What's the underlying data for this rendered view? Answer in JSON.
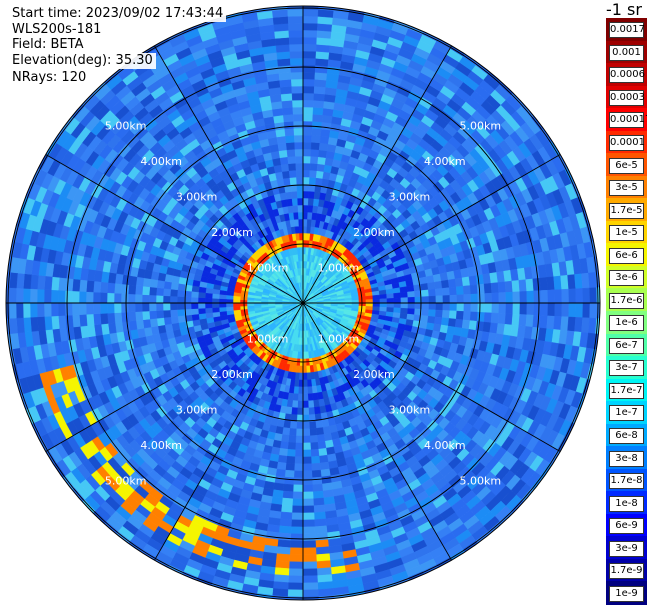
{
  "header": {
    "start_time": "Start time: 2023/09/02 17:43:44",
    "instrument": "WLS200s-181",
    "field": "Field: BETA",
    "elevation": "Elevation(deg): 35.30",
    "nrays": "NRays: 120"
  },
  "plot": {
    "ring_labels": [
      "1.00km",
      "2.00km",
      "3.00km",
      "4.00km",
      "5.00km"
    ],
    "spoke_count": 12,
    "colors": {
      "ring": "#000000",
      "background": "#2f6ff0"
    }
  },
  "colorbar": {
    "title": "-1 sr",
    "labels": [
      "0.0017",
      "0.001",
      "0.0006",
      "0.0003",
      "0.00017",
      "0.0001",
      "6e-5",
      "3e-5",
      "1.7e-5",
      "1e-5",
      "6e-6",
      "3e-6",
      "1.7e-6",
      "1e-6",
      "6e-7",
      "3e-7",
      "1.7e-7",
      "1e-7",
      "6e-8",
      "3e-8",
      "1.7e-8",
      "1e-8",
      "6e-9",
      "3e-9",
      "1.7e-9",
      "1e-9"
    ],
    "colors": [
      "#800000",
      "#9e0000",
      "#c00000",
      "#e00000",
      "#ff0000",
      "#ff2a00",
      "#ff5500",
      "#ff8000",
      "#ffaa00",
      "#ffd400",
      "#f5f500",
      "#d0ff28",
      "#a8ff50",
      "#80ff80",
      "#50ffa8",
      "#28ffd0",
      "#00f5f5",
      "#00d4ff",
      "#00aaff",
      "#0080ff",
      "#0055ff",
      "#002aff",
      "#0000ff",
      "#0000d0",
      "#0000a8",
      "#000080"
    ]
  }
}
